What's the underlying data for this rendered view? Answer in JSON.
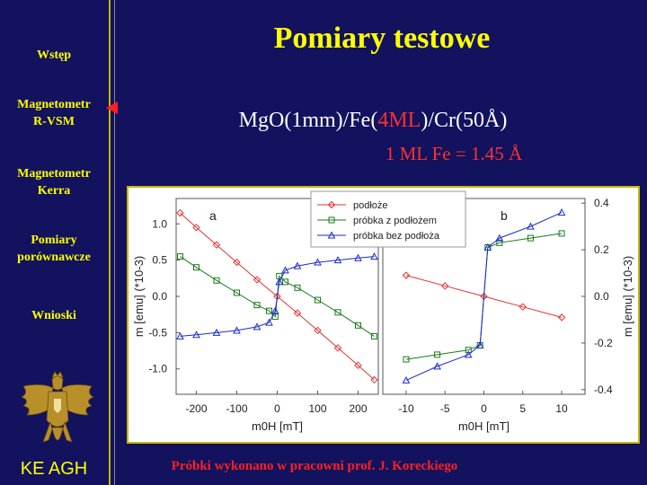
{
  "sidebar": {
    "items": [
      {
        "label_lines": [
          "Wstęp"
        ],
        "active": false
      },
      {
        "label_lines": [
          "Magnetometr",
          "R-VSM"
        ],
        "active": true
      },
      {
        "label_lines": [
          "Magnetometr",
          "Kerra"
        ],
        "active": false
      },
      {
        "label_lines": [
          "Pomiary",
          "porównawcze"
        ],
        "active": false
      },
      {
        "label_lines": [
          "Wnioski"
        ],
        "active": false
      }
    ],
    "logo_icon": "eagle-crest-icon",
    "footer": "KE AGH"
  },
  "slide": {
    "title": "Pomiary testowe",
    "formula": {
      "pre": "MgO(1mm)/Fe(",
      "highlight": "4ML",
      "post": ")/Cr(50Å)"
    },
    "ml_note": "1 ML Fe = 1.45 Å",
    "credit": "Próbki wykonano w pracowni prof. J. Koreckiego"
  },
  "colors": {
    "background": "#12125e",
    "accent": "#ffff00",
    "highlight": "#ff3030",
    "series_red": "#e53030",
    "series_green": "#1a7a1a",
    "series_blue": "#1a2ad0"
  },
  "chart_data": {
    "type": "scatter",
    "legend": [
      "podłoże",
      "próbka z podłożem",
      "próbka bez podłoża"
    ],
    "legend_position": "top-center",
    "panels": [
      {
        "label": "a",
        "xlabel": "m0H [mT]",
        "ylabel": "m [emu]  (*10-3)",
        "xlim": [
          -250,
          250
        ],
        "ylim": [
          -1.35,
          1.35
        ],
        "xticks": [
          -200,
          -100,
          0,
          100,
          200
        ],
        "yticks": [
          1.0,
          0.5,
          0.0,
          -0.5,
          -1.0
        ],
        "series": [
          {
            "name": "podłoże",
            "marker": "diamond",
            "x": [
              -240,
              -200,
              -150,
              -100,
              -50,
              0,
              50,
              100,
              150,
              200,
              240
            ],
            "y": [
              1.15,
              0.95,
              0.71,
              0.47,
              0.23,
              0.0,
              -0.23,
              -0.47,
              -0.71,
              -0.95,
              -1.15
            ]
          },
          {
            "name": "próbka z podłożem",
            "marker": "square",
            "x": [
              -240,
              -200,
              -150,
              -100,
              -50,
              -20,
              -5,
              5,
              20,
              50,
              100,
              150,
              200,
              240
            ],
            "y": [
              0.55,
              0.4,
              0.22,
              0.05,
              -0.12,
              -0.2,
              -0.28,
              0.28,
              0.2,
              0.12,
              -0.05,
              -0.22,
              -0.4,
              -0.55
            ]
          },
          {
            "name": "próbka bez podłoża",
            "marker": "triangle",
            "x": [
              -240,
              -200,
              -150,
              -100,
              -50,
              -20,
              -5,
              5,
              20,
              50,
              100,
              150,
              200,
              240
            ],
            "y": [
              -0.55,
              -0.53,
              -0.5,
              -0.47,
              -0.42,
              -0.36,
              -0.2,
              0.2,
              0.36,
              0.42,
              0.47,
              0.5,
              0.53,
              0.55
            ]
          }
        ]
      },
      {
        "label": "b",
        "xlabel": "m0H [mT]",
        "ylabel": "m [emu]  (*10-3)",
        "xlim": [
          -13,
          13
        ],
        "ylim": [
          -0.42,
          0.42
        ],
        "xticks": [
          -10,
          -5,
          0,
          5,
          10
        ],
        "yticks": [
          0.4,
          0.2,
          0.0,
          -0.2,
          -0.4
        ],
        "series": [
          {
            "name": "podłoże",
            "marker": "diamond",
            "x": [
              -10,
              -5,
              0,
              5,
              10
            ],
            "y": [
              0.09,
              0.045,
              0.0,
              -0.045,
              -0.09
            ]
          },
          {
            "name": "próbka z podłożem",
            "marker": "square",
            "x": [
              -10,
              -6,
              -2,
              -0.5,
              0.5,
              2,
              6,
              10
            ],
            "y": [
              -0.27,
              -0.25,
              -0.23,
              -0.21,
              0.21,
              0.23,
              0.25,
              0.27
            ]
          },
          {
            "name": "próbka bez podłoża",
            "marker": "triangle",
            "x": [
              -10,
              -6,
              -2,
              -0.5,
              0.5,
              2,
              6,
              10
            ],
            "y": [
              -0.36,
              -0.3,
              -0.25,
              -0.21,
              0.21,
              0.25,
              0.3,
              0.36
            ]
          }
        ]
      }
    ]
  }
}
